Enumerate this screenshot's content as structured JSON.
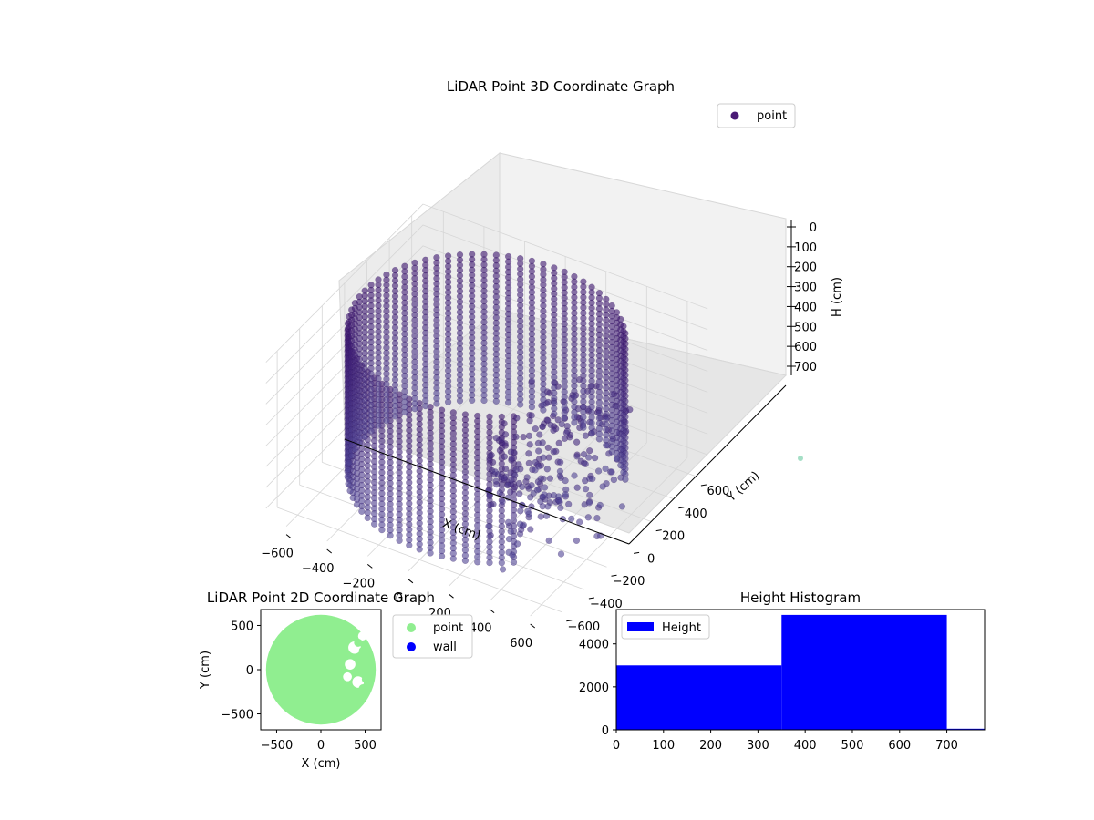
{
  "chart_data": [
    {
      "type": "scatter3d",
      "title": "LiDAR Point 3D Coordinate Graph",
      "xlabel": "X (cm)",
      "ylabel": "Y (cm)",
      "zlabel": "H (cm)",
      "xlim": [
        -700,
        700
      ],
      "ylim": [
        -700,
        700
      ],
      "zlim": [
        0,
        750
      ],
      "z_inverted": true,
      "xticks": [
        -600,
        -400,
        -200,
        0,
        200,
        400,
        600
      ],
      "yticks": [
        -600,
        -400,
        -200,
        0,
        200,
        400,
        600
      ],
      "zticks": [
        0,
        100,
        200,
        300,
        400,
        500,
        600,
        700
      ],
      "legend": {
        "placement": "top-right",
        "entries": [
          {
            "label": "point",
            "color": "#4a1a75"
          }
        ]
      },
      "series": [
        {
          "name": "point",
          "color": "#45237a",
          "description_shape": "cylindrical wall of radius ~600 cm, heights 0-700, open sector on +X side",
          "radius": 600,
          "z_range": [
            0,
            700
          ],
          "gap_theta_deg": [
            -50,
            35
          ]
        }
      ]
    },
    {
      "type": "scatter",
      "title": "LiDAR Point 2D Coordinate Graph",
      "xlabel": "X (cm)",
      "ylabel": "Y (cm)",
      "xlim": [
        -680,
        680
      ],
      "ylim": [
        -680,
        680
      ],
      "xticks": [
        -500,
        0,
        500
      ],
      "yticks": [
        -500,
        0,
        500
      ],
      "legend": {
        "placement": "right-outside",
        "entries": [
          {
            "label": "point",
            "color": "#90ee90"
          },
          {
            "label": "wall",
            "color": "#0000ff"
          }
        ]
      },
      "series": [
        {
          "name": "point",
          "color": "#90ee90",
          "shape": "filled disk radius ~620 cm with notches on +X side"
        },
        {
          "name": "wall",
          "color": "#0000ff",
          "values": []
        }
      ]
    },
    {
      "type": "bar",
      "title": "Height Histogram",
      "xlim": [
        0,
        780
      ],
      "ylim": [
        0,
        5600
      ],
      "xticks": [
        0,
        100,
        200,
        300,
        400,
        500,
        600,
        700
      ],
      "yticks": [
        0,
        2000,
        4000
      ],
      "legend": {
        "placement": "top-left",
        "entries": [
          {
            "label": "Height",
            "color": "#0000ff"
          }
        ]
      },
      "bins": [
        {
          "from": 0,
          "to": 350,
          "count": 3000
        },
        {
          "from": 350,
          "to": 700,
          "count": 5350
        },
        {
          "from": 700,
          "to": 1050,
          "count": 50
        }
      ],
      "color": "#0000ff"
    }
  ]
}
